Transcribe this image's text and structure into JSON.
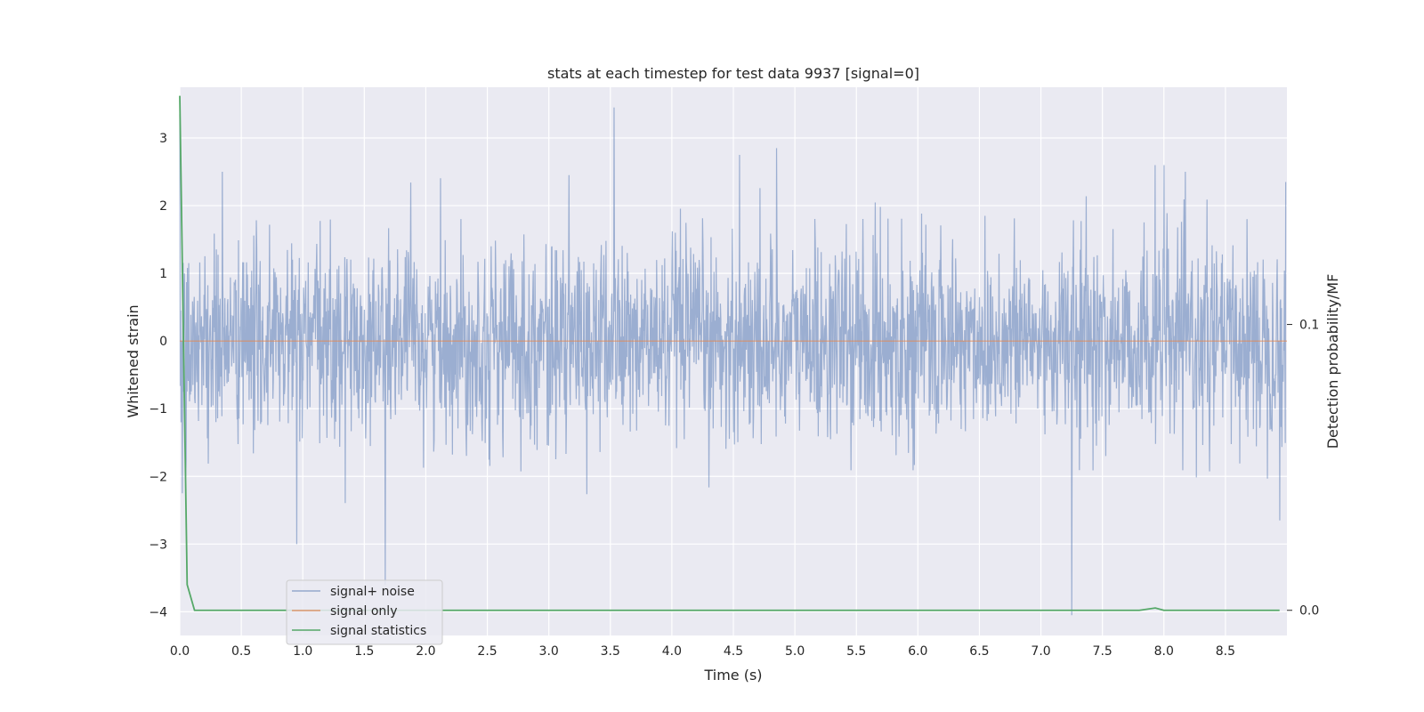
{
  "chart_data": {
    "type": "line",
    "title": "stats at each timestep for test data 9937 [signal=0]",
    "xlabel": "Time (s)",
    "ylabel": "Whitened strain",
    "ylabel_right": "Detection probability/MF",
    "xlim": [
      0.0,
      9.0
    ],
    "ylim": [
      -4.35,
      3.75
    ],
    "ylim_right": [
      -0.0088,
      0.183
    ],
    "x_ticks": [
      "0.0",
      "0.5",
      "1.0",
      "1.5",
      "2.0",
      "2.5",
      "3.0",
      "3.5",
      "4.0",
      "4.5",
      "5.0",
      "5.5",
      "6.0",
      "6.5",
      "7.0",
      "7.5",
      "8.0",
      "8.5"
    ],
    "y_ticks": [
      "3",
      "2",
      "1",
      "0",
      "−1",
      "−2",
      "−3",
      "−4"
    ],
    "y_ticks_right": [
      "0.1",
      "0.0"
    ],
    "grid": true,
    "legend_position": "lower-left",
    "series": [
      {
        "name": "signal+ noise",
        "axis": "left",
        "color": "#4c72b0",
        "description_points": {
          "x": [
            0.0,
            0.02,
            0.05,
            0.95,
            1.67,
            3.53,
            4.55,
            4.85,
            7.25,
            7.93,
            8.0,
            8.94,
            8.99
          ],
          "y": [
            3.35,
            -2.25,
            -2.0,
            -3.0,
            -3.6,
            3.45,
            2.75,
            2.85,
            -4.05,
            2.6,
            2.6,
            -2.65,
            2.35
          ]
        },
        "noise_std": 0.72
      },
      {
        "name": "signal only",
        "axis": "left",
        "color": "#dd8452",
        "x": [
          0.0,
          9.0
        ],
        "y": [
          0,
          0
        ]
      },
      {
        "name": "signal statistics",
        "axis": "right",
        "color": "#55a868",
        "x": [
          0.0,
          0.06,
          0.12,
          1.0,
          2.0,
          3.0,
          4.0,
          5.0,
          6.0,
          7.0,
          7.8,
          7.93,
          8.0,
          8.5,
          8.94
        ],
        "y": [
          0.18,
          0.009,
          0.0,
          0.0,
          0.0,
          0.0,
          0.0,
          0.0,
          0.0,
          0.0,
          0.0,
          0.0008,
          0.0,
          0.0,
          0.0
        ]
      }
    ]
  },
  "legend": {
    "items": [
      {
        "label": "signal+ noise",
        "color": "#4c72b0"
      },
      {
        "label": "signal only",
        "color": "#dd8452"
      },
      {
        "label": "signal statistics",
        "color": "#55a868"
      }
    ]
  }
}
